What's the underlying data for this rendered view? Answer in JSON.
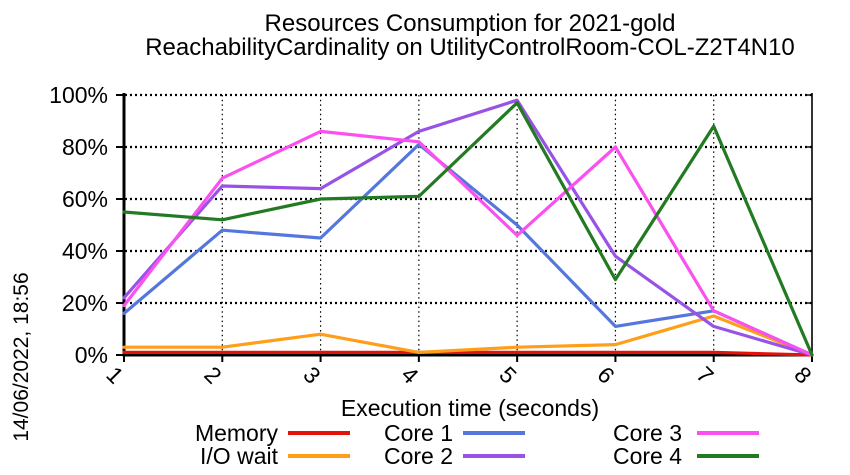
{
  "title_line1": "Resources Consumption for 2021-gold",
  "title_line2": "ReachabilityCardinality on UtilityControlRoom-COL-Z2T4N10",
  "date_label": "14/06/2022, 18:56",
  "chart_data": {
    "type": "line",
    "title": "Resources Consumption for 2021-gold\nReachabilityCardinality on UtilityControlRoom-COL-Z2T4N10",
    "xlabel": "Execution time (seconds)",
    "ylabel": "",
    "x": [
      1,
      2,
      3,
      4,
      5,
      6,
      7,
      8
    ],
    "xticks": [
      "1",
      "2",
      "3",
      "4",
      "5",
      "6",
      "7",
      "8"
    ],
    "yticks": [
      "0%",
      "20%",
      "40%",
      "60%",
      "80%",
      "100%"
    ],
    "ylim": [
      0,
      100
    ],
    "xlim": [
      1,
      8
    ],
    "grid": true,
    "legend_position": "bottom",
    "axis_color": "#000000",
    "background": "#ffffff",
    "series": [
      {
        "name": "Memory",
        "color": "#e3120b",
        "values": [
          1,
          1,
          1,
          1,
          1,
          1,
          1,
          0
        ]
      },
      {
        "name": "I/O wait",
        "color": "#ff9e18",
        "values": [
          3,
          3,
          8,
          1,
          3,
          4,
          15,
          0
        ]
      },
      {
        "name": "Core 1",
        "color": "#5577dd",
        "values": [
          16,
          48,
          45,
          81,
          50,
          11,
          17,
          0
        ]
      },
      {
        "name": "Core 2",
        "color": "#9852e6",
        "values": [
          22,
          65,
          64,
          86,
          98,
          38,
          11,
          0
        ]
      },
      {
        "name": "Core 3",
        "color": "#fb50f0",
        "values": [
          19,
          68,
          86,
          82,
          46,
          80,
          17,
          0
        ]
      },
      {
        "name": "Core 4",
        "color": "#227a22",
        "values": [
          55,
          52,
          60,
          61,
          97,
          29,
          88,
          0
        ]
      }
    ]
  }
}
